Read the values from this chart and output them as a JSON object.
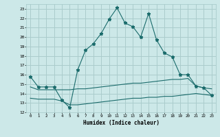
{
  "title": "",
  "xlabel": "Humidex (Indice chaleur)",
  "bg_color": "#cce8e8",
  "grid_color": "#aacccc",
  "line_color": "#1a6b6b",
  "xlim": [
    -0.5,
    23.5
  ],
  "ylim": [
    12,
    23.5
  ],
  "xticks": [
    0,
    1,
    2,
    3,
    4,
    5,
    6,
    7,
    8,
    9,
    10,
    11,
    12,
    13,
    14,
    15,
    16,
    17,
    18,
    19,
    20,
    21,
    22,
    23
  ],
  "yticks": [
    12,
    13,
    14,
    15,
    16,
    17,
    18,
    19,
    20,
    21,
    22,
    23
  ],
  "main_x": [
    0,
    1,
    2,
    3,
    4,
    5,
    6,
    7,
    8,
    9,
    10,
    11,
    12,
    13,
    14,
    15,
    16,
    17,
    18,
    19,
    20,
    21,
    22,
    23
  ],
  "main_y": [
    15.8,
    14.7,
    14.7,
    14.7,
    13.3,
    12.5,
    16.5,
    18.6,
    19.3,
    20.4,
    21.9,
    23.1,
    21.5,
    21.1,
    20.0,
    22.5,
    19.7,
    18.3,
    17.9,
    16.0,
    16.0,
    14.8,
    14.6,
    13.8
  ],
  "flat1_x": [
    0,
    1,
    2,
    3,
    4,
    5,
    6,
    7,
    8,
    9,
    10,
    11,
    12,
    13,
    14,
    15,
    16,
    17,
    18,
    19,
    20,
    21,
    22,
    23
  ],
  "flat1_y": [
    14.7,
    14.4,
    14.4,
    14.4,
    14.4,
    14.4,
    14.5,
    14.5,
    14.6,
    14.7,
    14.8,
    14.9,
    15.0,
    15.1,
    15.1,
    15.2,
    15.3,
    15.4,
    15.5,
    15.5,
    15.6,
    14.8,
    14.6,
    14.5
  ],
  "flat2_x": [
    0,
    1,
    2,
    3,
    4,
    5,
    6,
    7,
    8,
    9,
    10,
    11,
    12,
    13,
    14,
    15,
    16,
    17,
    18,
    19,
    20,
    21,
    22,
    23
  ],
  "flat2_y": [
    13.5,
    13.4,
    13.4,
    13.4,
    13.2,
    12.8,
    12.8,
    12.9,
    13.0,
    13.1,
    13.2,
    13.3,
    13.4,
    13.5,
    13.5,
    13.6,
    13.6,
    13.7,
    13.7,
    13.8,
    13.9,
    14.0,
    13.9,
    13.8
  ]
}
